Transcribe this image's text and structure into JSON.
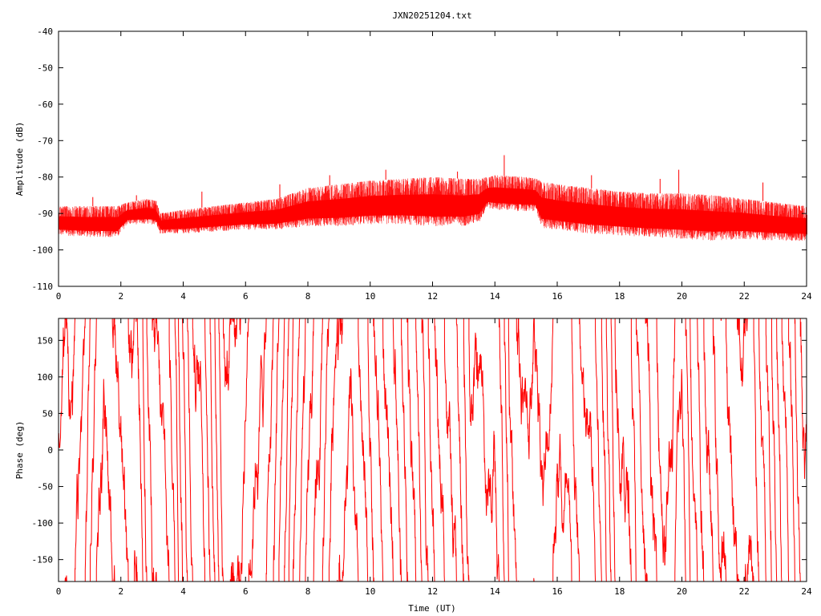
{
  "chart_data": [
    {
      "type": "line",
      "title": "JXN20251204.txt",
      "xlabel": "",
      "ylabel": "Amplitude (dB)",
      "xlim": [
        0,
        24
      ],
      "ylim": [
        -110,
        -40
      ],
      "xticks": [
        "0",
        "2",
        "4",
        "6",
        "8",
        "10",
        "12",
        "14",
        "16",
        "18",
        "20",
        "22",
        "24"
      ],
      "yticks": [
        "-110",
        "-100",
        "-90",
        "-80",
        "-70",
        "-60",
        "-50",
        "-40"
      ],
      "series_color": "#ff0000",
      "envelope": {
        "hours": [
          0,
          1,
          1.9,
          2.2,
          2.8,
          3.15,
          3.25,
          4,
          5,
          6,
          7,
          8,
          9,
          10,
          11,
          12,
          13,
          13.5,
          13.75,
          14,
          15,
          15.35,
          15.45,
          16,
          17,
          18,
          19,
          20,
          21,
          22,
          23,
          24
        ],
        "lower": [
          -96,
          -96.5,
          -96.5,
          -93,
          -93,
          -93,
          -95.5,
          -95.5,
          -95,
          -94.5,
          -94.5,
          -93.5,
          -93.5,
          -93,
          -93,
          -93.5,
          -93.5,
          -92.5,
          -88.5,
          -89,
          -89.5,
          -89.5,
          -94,
          -94.5,
          -95.5,
          -96,
          -96.5,
          -97,
          -97.5,
          -97,
          -97.5,
          -97.5
        ],
        "upper": [
          -88,
          -88,
          -88,
          -87,
          -86,
          -86.5,
          -90,
          -89,
          -88,
          -87,
          -86,
          -83,
          -82,
          -81,
          -80.5,
          -80,
          -80.5,
          -80.5,
          -80,
          -79.5,
          -80,
          -80.5,
          -81,
          -82,
          -83,
          -84,
          -84.5,
          -84.5,
          -85,
          -86,
          -87,
          -88
        ],
        "spikes": [
          [
            1.1,
            -85.5
          ],
          [
            2.5,
            -85
          ],
          [
            4.6,
            -84
          ],
          [
            7.1,
            -82
          ],
          [
            8.7,
            -79.5
          ],
          [
            10.5,
            -78
          ],
          [
            12.8,
            -78.5
          ],
          [
            14.3,
            -74
          ],
          [
            17.1,
            -79.5
          ],
          [
            19.3,
            -80.5
          ],
          [
            19.9,
            -78
          ],
          [
            22.6,
            -81.5
          ]
        ]
      }
    },
    {
      "type": "line",
      "title": "",
      "xlabel": "Time (UT)",
      "ylabel": "Phase (deg)",
      "xlim": [
        0,
        24
      ],
      "ylim": [
        -180,
        180
      ],
      "xticks": [
        "0",
        "2",
        "4",
        "6",
        "8",
        "10",
        "12",
        "14",
        "16",
        "18",
        "20",
        "22",
        "24"
      ],
      "yticks": [
        "-150",
        "-100",
        "-50",
        "0",
        "50",
        "100",
        "150"
      ],
      "series_color": "#ff0000",
      "note": "phase wraps between -180 and 180 degrees; dense noisy trace across the full 24 h"
    }
  ]
}
